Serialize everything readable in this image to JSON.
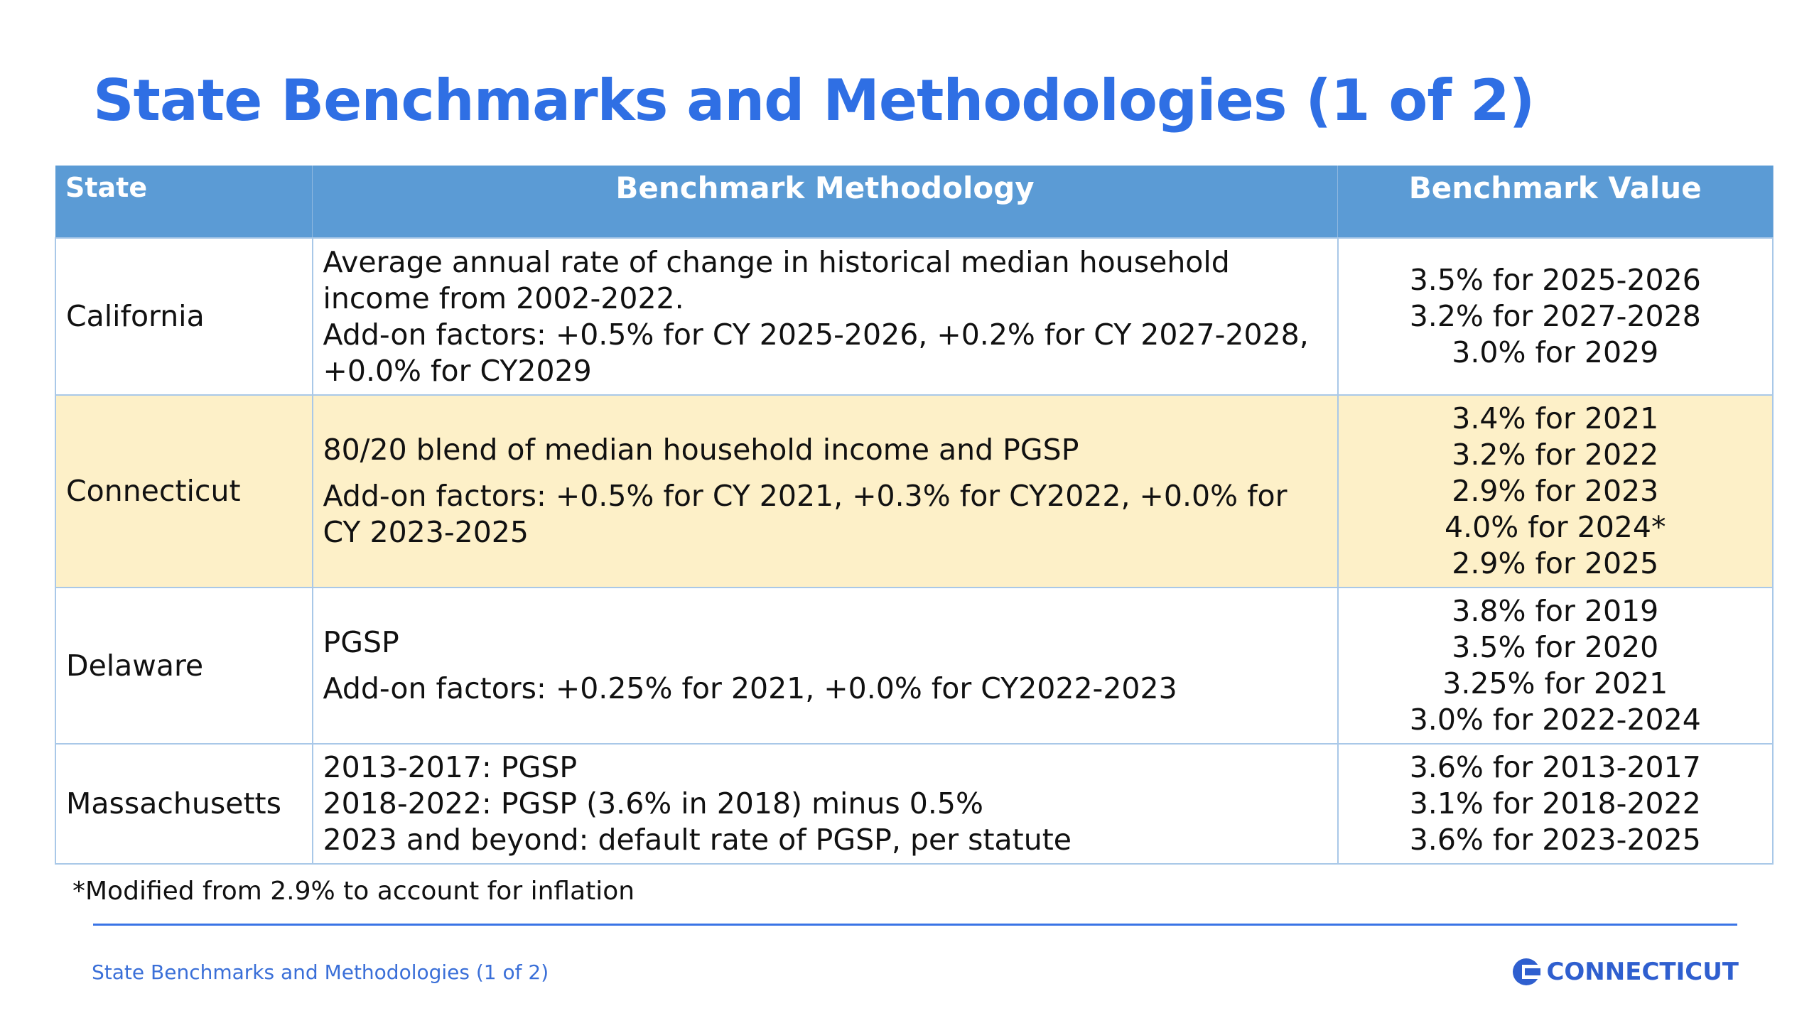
{
  "title": "State Benchmarks and Methodologies (1 of 2)",
  "table": {
    "headers": [
      "State",
      "Benchmark Methodology",
      "Benchmark Value"
    ],
    "rows": [
      {
        "state": "California",
        "methodology": [
          "Average annual rate of change in historical median household income from 2002-2022.",
          "Add-on factors: +0.5% for CY 2025-2026, +0.2% for CY 2027-2028, +0.0% for CY2029"
        ],
        "values": [
          "3.5% for 2025-2026",
          "3.2% for 2027-2028",
          "3.0% for 2029"
        ]
      },
      {
        "state": "Connecticut",
        "methodology": [
          "80/20 blend of median household income and PGSP",
          "Add-on factors: +0.5% for CY 2021, +0.3% for CY2022, +0.0% for CY 2023-2025"
        ],
        "values": [
          "3.4% for 2021",
          "3.2% for 2022",
          "2.9% for 2023",
          "4.0% for 2024*",
          "2.9% for 2025"
        ]
      },
      {
        "state": "Delaware",
        "methodology": [
          "PGSP",
          "Add-on factors: +0.25% for 2021, +0.0% for CY2022-2023"
        ],
        "values": [
          "3.8% for 2019",
          "3.5% for 2020",
          "3.25% for 2021",
          "3.0% for 2022-2024"
        ]
      },
      {
        "state": "Massachusetts",
        "methodology": [
          "2013-2017: PGSP",
          "2018-2022: PGSP (3.6% in 2018) minus 0.5%",
          "2023 and beyond: default rate of PGSP, per statute"
        ],
        "values": [
          "3.6% for 2013-2017",
          "3.1% for 2018-2022",
          "3.6% for 2023-2025"
        ]
      }
    ]
  },
  "footnote": "*Modified from 2.9% to account for inflation",
  "footer": {
    "text": "State Benchmarks and Methodologies (1 of 2)",
    "logo": "CONNECTICUT"
  }
}
